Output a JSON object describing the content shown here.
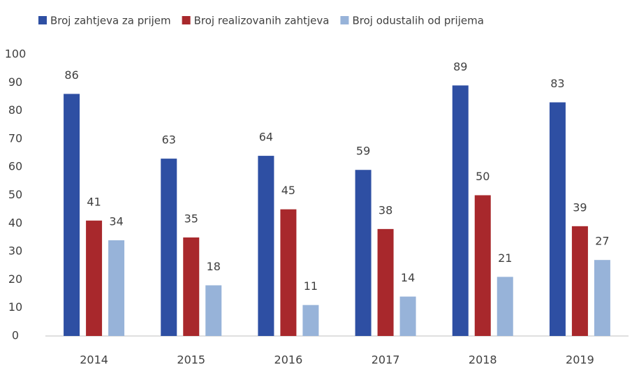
{
  "chart_data": {
    "type": "bar",
    "categories": [
      "2014",
      "2015",
      "2016",
      "2017",
      "2018",
      "2019"
    ],
    "series": [
      {
        "name": "Broj zahtjeva za prijem",
        "color": "#2e4fa3",
        "values": [
          86,
          63,
          64,
          59,
          89,
          83
        ]
      },
      {
        "name": "Broj realizovanih zahtjeva",
        "color": "#a8282c",
        "values": [
          41,
          35,
          45,
          38,
          50,
          39
        ]
      },
      {
        "name": "Broj odustalih od prijema",
        "color": "#97b3d9",
        "values": [
          34,
          18,
          11,
          14,
          21,
          27
        ]
      }
    ],
    "ylim": [
      0,
      100
    ],
    "yticks": [
      0,
      10,
      20,
      30,
      40,
      50,
      60,
      70,
      80,
      90,
      100
    ],
    "grid": false,
    "legend": "top"
  }
}
